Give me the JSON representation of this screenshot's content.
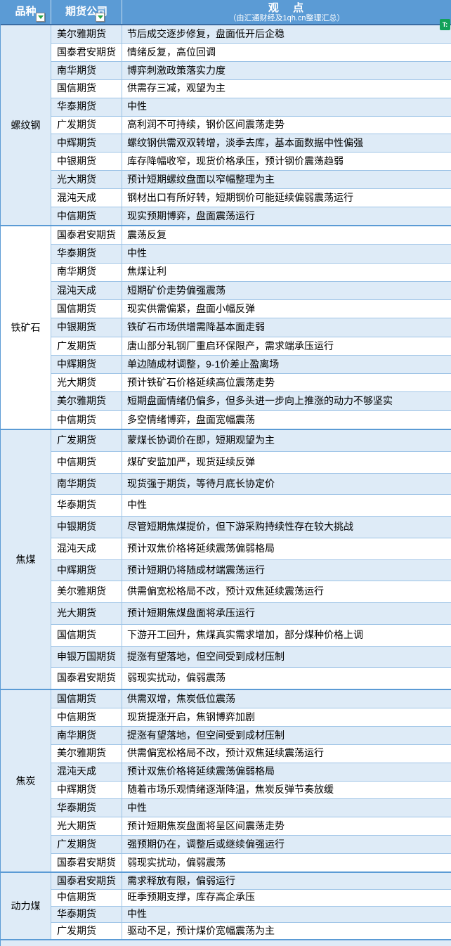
{
  "header": {
    "variety_label": "品种",
    "company_label": "期货公司",
    "view_label": "观 点",
    "view_subtitle": "（由汇通财经及1qh.cn整理汇总）",
    "badge_text": "T:"
  },
  "colors": {
    "header_bg": "#5B9BD5",
    "band_blue": "#DEEBF7",
    "band_white": "#FFFFFF",
    "row_line": "#9DC3E6",
    "section_line": "#5B9BD5",
    "badge_green": "#13A15A",
    "filter_green": "#27A343"
  },
  "sections": [
    {
      "variety": "螺纹钢",
      "rows": [
        {
          "company": "美尔雅期货",
          "view": "节后成交逐步修复，盘面低开后企稳"
        },
        {
          "company": "国泰君安期货",
          "view": "情绪反复，高位回调"
        },
        {
          "company": "南华期货",
          "view": "博弈刺激政策落实力度"
        },
        {
          "company": "国信期货",
          "view": "供需存三减，观望为主"
        },
        {
          "company": "华泰期货",
          "view": "中性"
        },
        {
          "company": "广发期货",
          "view": "高利润不可持续，钢价区间震荡走势"
        },
        {
          "company": "中辉期货",
          "view": "螺纹钢供需双双转增，淡季去库，基本面数据中性偏强"
        },
        {
          "company": "中银期货",
          "view": "库存降幅收窄，现货价格承压，预计钢价震荡趋弱"
        },
        {
          "company": "光大期货",
          "view": "预计短期螺纹盘面以窄幅整理为主"
        },
        {
          "company": "混沌天成",
          "view": "钢材出口有所好转，短期钢价可能延续偏弱震荡运行"
        },
        {
          "company": "中信期货",
          "view": "现实预期博弈，盘面震荡运行"
        }
      ]
    },
    {
      "variety": "铁矿石",
      "rows": [
        {
          "company": "国泰君安期货",
          "view": "震荡反复"
        },
        {
          "company": "华泰期货",
          "view": "中性"
        },
        {
          "company": "南华期货",
          "view": "焦煤让利"
        },
        {
          "company": "混沌天成",
          "view": "短期矿价走势偏强震荡"
        },
        {
          "company": "国信期货",
          "view": "现实供需偏紧，盘面小幅反弹"
        },
        {
          "company": "中银期货",
          "view": "铁矿石市场供增需降基本面走弱"
        },
        {
          "company": "广发期货",
          "view": "唐山部分轧钢厂重启环保限产，需求端承压运行"
        },
        {
          "company": "中辉期货",
          "view": "单边随成材调整，9-1价差止盈离场"
        },
        {
          "company": "光大期货",
          "view": "预计铁矿石价格延续高位震荡走势"
        },
        {
          "company": "美尔雅期货",
          "view": "短期盘面情绪仍偏多，但多头进一步向上推涨的动力不够坚实"
        },
        {
          "company": "中信期货",
          "view": "多空情绪博弈，盘面宽幅震荡"
        }
      ]
    },
    {
      "variety": "焦煤",
      "rows": [
        {
          "company": "广发期货",
          "view": "蒙煤长协调价在即，短期观望为主"
        },
        {
          "company": "中信期货",
          "view": "煤矿安监加严，现货延续反弹"
        },
        {
          "company": "南华期货",
          "view": "现货强于期货，等待月底长协定价"
        },
        {
          "company": "华泰期货",
          "view": "中性"
        },
        {
          "company": "中银期货",
          "view": "尽管短期焦煤提价，但下游采购持续性存在较大挑战"
        },
        {
          "company": "混沌天成",
          "view": "预计双焦价格将延续震荡偏弱格局"
        },
        {
          "company": "中辉期货",
          "view": "预计短期仍将随成材端震荡运行"
        },
        {
          "company": "美尔雅期货",
          "view": "供需偏宽松格局不改，预计双焦延续震荡运行"
        },
        {
          "company": "光大期货",
          "view": "预计短期焦煤盘面将承压运行"
        },
        {
          "company": "国信期货",
          "view": "下游开工回升，焦煤真实需求增加，部分煤种价格上调"
        },
        {
          "company": "申银万国期货",
          "view": "提涨有望落地，但空间受到成材压制"
        },
        {
          "company": "国泰君安期货",
          "view": "弱现实扰动，偏弱震荡"
        }
      ]
    },
    {
      "variety": "焦炭",
      "rows": [
        {
          "company": "国信期货",
          "view": "供需双增，焦炭低位震荡"
        },
        {
          "company": "中信期货",
          "view": "现货提涨开启，焦钢博弈加剧"
        },
        {
          "company": "南华期货",
          "view": "提涨有望落地，但空间受到成材压制"
        },
        {
          "company": "美尔雅期货",
          "view": "供需偏宽松格局不改，预计双焦延续震荡运行"
        },
        {
          "company": "混沌天成",
          "view": "预计双焦价格将延续震荡偏弱格局"
        },
        {
          "company": "中辉期货",
          "view": "随着市场乐观情绪逐渐降温，焦炭反弹节奏放缓"
        },
        {
          "company": "华泰期货",
          "view": "中性"
        },
        {
          "company": "光大期货",
          "view": "预计短期焦炭盘面将呈区间震荡走势"
        },
        {
          "company": "广发期货",
          "view": "强预期仍在，调整后或继续偏强运行"
        },
        {
          "company": "国泰君安期货",
          "view": "弱现实扰动，偏弱震荡"
        }
      ]
    },
    {
      "variety": "动力煤",
      "rows": [
        {
          "company": "国泰君安期货",
          "view": "需求释放有限，偏弱运行"
        },
        {
          "company": "中信期货",
          "view": "旺季预期支撑，库存高企承压"
        },
        {
          "company": "华泰期货",
          "view": "中性"
        },
        {
          "company": "广发期货",
          "view": "驱动不足，预计煤价宽幅震荡为主"
        }
      ]
    }
  ]
}
